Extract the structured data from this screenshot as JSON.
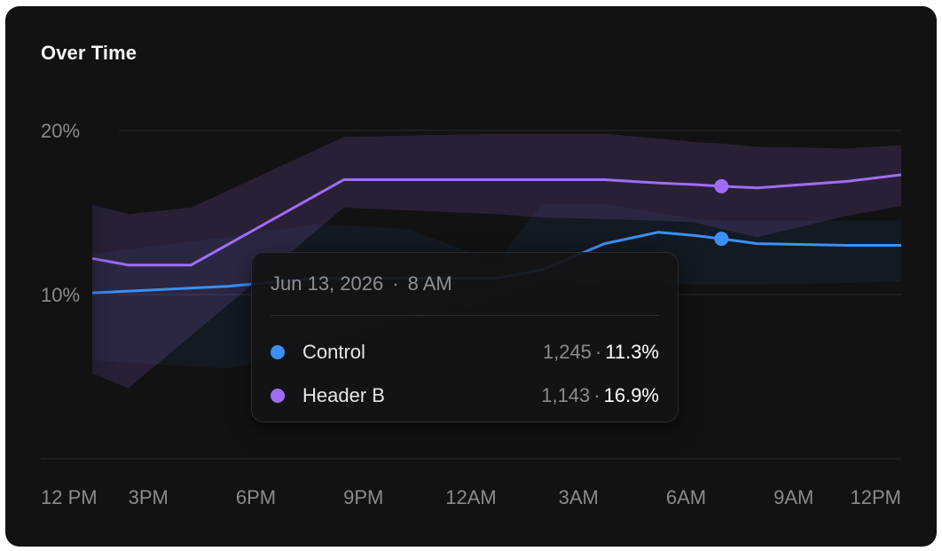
{
  "card": {
    "title": "Over Time"
  },
  "chart_data": {
    "type": "line",
    "title": "Over Time",
    "xlabel": "",
    "ylabel": "",
    "x_ticks": [
      "12 PM",
      "3PM",
      "6PM",
      "9PM",
      "12AM",
      "3AM",
      "6AM",
      "9AM",
      "12PM"
    ],
    "y_ticks": [
      "20%",
      "10%"
    ],
    "ylim": [
      0,
      20
    ],
    "grid": true,
    "series": [
      {
        "name": "Control",
        "color": "#3b8ff6",
        "x": [
          0,
          1.5,
          2.5,
          3.5,
          4.5,
          5.0,
          5.7,
          6.3,
          6.7,
          7.0,
          7.4,
          8.4,
          9.0
        ],
        "values": [
          10.1,
          10.5,
          11.0,
          11.0,
          11.0,
          11.5,
          13.1,
          13.8,
          13.6,
          13.4,
          13.1,
          13.0,
          13.0
        ],
        "ci_upper": [
          12.5,
          13.5,
          14.3,
          14.0,
          12.0,
          15.5,
          15.5,
          15.0,
          14.6,
          14.5,
          14.5,
          14.5,
          14.5
        ],
        "ci_lower": [
          6.0,
          5.5,
          6.5,
          8.5,
          9.5,
          10.5,
          10.7,
          10.7,
          10.6,
          10.6,
          10.6,
          10.7,
          10.8
        ]
      },
      {
        "name": "Header B",
        "color": "#a06cf5",
        "x": [
          0,
          0.4,
          1.1,
          2.8,
          4.5,
          5.0,
          5.7,
          6.3,
          6.7,
          7.0,
          7.4,
          8.4,
          9.0
        ],
        "values": [
          12.2,
          11.8,
          11.8,
          17.0,
          17.0,
          17.0,
          17.0,
          16.8,
          16.7,
          16.6,
          16.5,
          16.9,
          17.3
        ],
        "ci_upper": [
          15.5,
          14.9,
          15.3,
          19.6,
          19.8,
          19.8,
          19.8,
          19.5,
          19.3,
          19.2,
          19.0,
          18.9,
          19.1
        ],
        "ci_lower": [
          5.2,
          4.3,
          7.5,
          15.3,
          14.9,
          14.7,
          14.6,
          14.5,
          14.4,
          14.0,
          13.5,
          14.8,
          15.4
        ]
      }
    ],
    "hover_index_label": "8 AM"
  },
  "tooltip": {
    "date": "Jun 13, 2026",
    "separator": "·",
    "time": "8 AM",
    "rows": [
      {
        "name": "Control",
        "color": "#3b8ff6",
        "count": "1,245",
        "sep": "·",
        "rate": "11.3%"
      },
      {
        "name": "Header B",
        "color": "#a06cf5",
        "count": "1,143",
        "sep": "·",
        "rate": "16.9%"
      }
    ]
  }
}
